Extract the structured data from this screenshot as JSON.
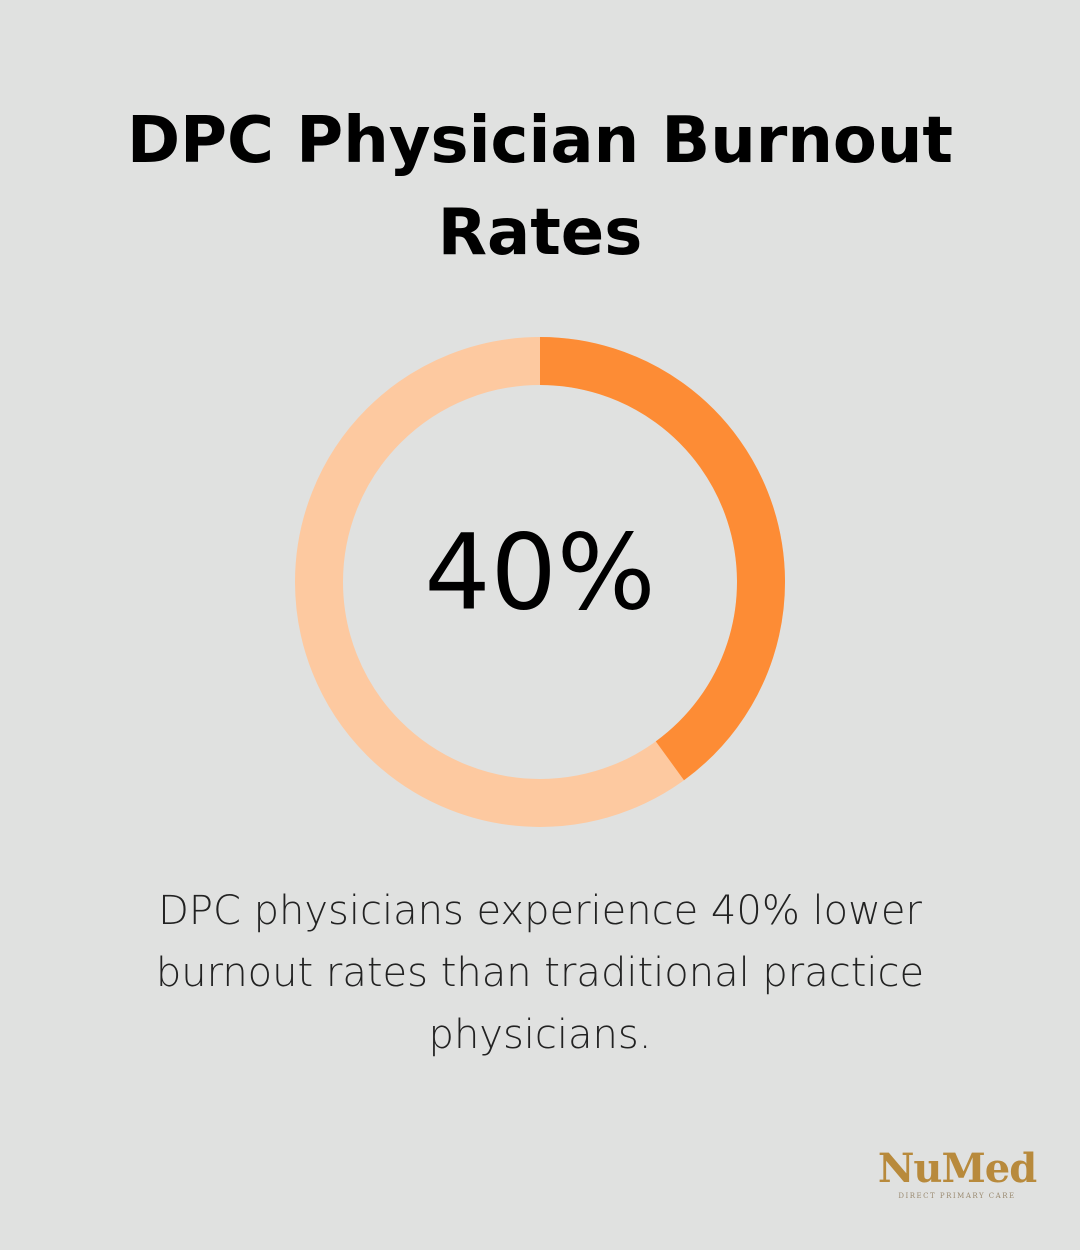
{
  "chart_data": {
    "type": "donut",
    "title": "DPC Physician Burnout Rates",
    "values": [
      40
    ],
    "value_labels": [
      "40%"
    ],
    "color": "#fd8c35",
    "track_color": "#fdc9a0",
    "caption": "DPC physicians experience 40% lower burnout rates than traditional practice physicians."
  },
  "logo": {
    "name": "NuMed",
    "tagline": "DIRECT PRIMARY CARE"
  }
}
